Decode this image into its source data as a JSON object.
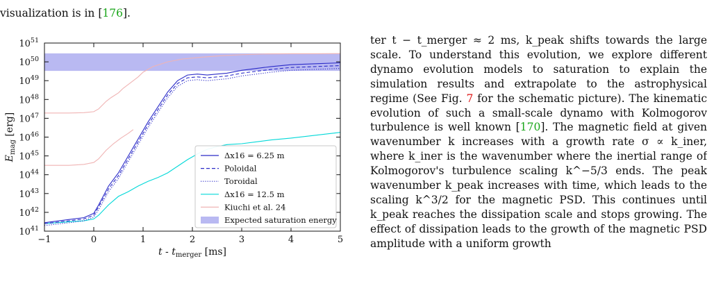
{
  "top_text": {
    "line1": "",
    "line2_prefix": "visualization is in [",
    "line2_ref": "176",
    "line2_suffix": "]."
  },
  "chart_data": {
    "type": "line",
    "title": "",
    "xlabel": "t - t_merger [ms]",
    "ylabel": "E_mag [erg]",
    "xlim": [
      -1,
      5
    ],
    "ylim_log10": [
      41,
      51
    ],
    "yscale": "log",
    "x_ticks": [
      "−1",
      "0",
      "1",
      "2",
      "3",
      "4",
      "5"
    ],
    "y_ticks": [
      "10^41",
      "10^42",
      "10^43",
      "10^44",
      "10^45",
      "10^46",
      "10^47",
      "10^48",
      "10^49",
      "10^50",
      "10^51"
    ],
    "legend_position": "lower-right",
    "saturation_band_log10": [
      49.52,
      50.45
    ],
    "series": [
      {
        "name": "Δx16 = 6.25 m",
        "color": "#2b2bc8",
        "dash": "solid",
        "x": [
          -1,
          -0.5,
          -0.2,
          0,
          0.1,
          0.3,
          0.5,
          0.7,
          0.9,
          1.1,
          1.3,
          1.5,
          1.7,
          1.9,
          2.1,
          2.3,
          2.5,
          2.7,
          3,
          3.3,
          3.6,
          4,
          4.5,
          5
        ],
        "log10_y": [
          41.45,
          41.62,
          41.72,
          41.95,
          42.4,
          43.4,
          44.1,
          45.0,
          45.9,
          46.8,
          47.6,
          48.4,
          49.0,
          49.3,
          49.35,
          49.3,
          49.35,
          49.4,
          49.55,
          49.65,
          49.75,
          49.85,
          49.9,
          49.95
        ]
      },
      {
        "name": "Poloidal",
        "color": "#2b2bc8",
        "dash": "dashed",
        "x": [
          -1,
          -0.5,
          -0.2,
          0,
          0.1,
          0.3,
          0.5,
          0.7,
          0.9,
          1.1,
          1.3,
          1.5,
          1.7,
          1.9,
          2.1,
          2.3,
          2.5,
          2.7,
          3,
          3.3,
          3.6,
          4,
          4.5,
          5
        ],
        "log10_y": [
          41.4,
          41.55,
          41.65,
          41.85,
          42.3,
          43.25,
          43.95,
          44.85,
          45.75,
          46.65,
          47.45,
          48.25,
          48.85,
          49.15,
          49.2,
          49.15,
          49.2,
          49.25,
          49.4,
          49.5,
          49.6,
          49.7,
          49.75,
          49.8
        ]
      },
      {
        "name": "Toroidal",
        "color": "#2b2bc8",
        "dash": "dotted",
        "x": [
          -1,
          -0.5,
          -0.2,
          0,
          0.1,
          0.3,
          0.5,
          0.7,
          0.9,
          1.1,
          1.3,
          1.5,
          1.7,
          1.9,
          2.1,
          2.3,
          2.5,
          2.7,
          3,
          3.3,
          3.6,
          4,
          4.5,
          5
        ],
        "log10_y": [
          41.3,
          41.45,
          41.55,
          41.75,
          42.15,
          43.1,
          43.8,
          44.7,
          45.6,
          46.5,
          47.3,
          48.1,
          48.7,
          49.0,
          49.05,
          49.0,
          49.05,
          49.1,
          49.25,
          49.35,
          49.45,
          49.55,
          49.6,
          49.65
        ]
      },
      {
        "name": "Δx16 = 12.5 m",
        "color": "#00d8d8",
        "dash": "solid",
        "x": [
          -1,
          -0.5,
          -0.2,
          0,
          0.1,
          0.3,
          0.5,
          0.7,
          0.9,
          1.1,
          1.3,
          1.5,
          1.7,
          1.9,
          2.1,
          2.3,
          2.5,
          2.7,
          3,
          3.3,
          3.6,
          4,
          4.5,
          5
        ],
        "log10_y": [
          41.4,
          41.5,
          41.55,
          41.65,
          41.85,
          42.4,
          42.85,
          43.1,
          43.4,
          43.65,
          43.85,
          44.1,
          44.45,
          44.8,
          45.1,
          45.35,
          45.5,
          45.6,
          45.65,
          45.75,
          45.85,
          45.95,
          46.1,
          46.25
        ]
      },
      {
        "name": "Kiuchi et al. 24",
        "color": "#f0b4b4",
        "dash": "solid",
        "x": [
          -1,
          -0.5,
          -0.2,
          0,
          0.1,
          0.25,
          0.35,
          0.5,
          0.6,
          0.75,
          0.9,
          1.0,
          1.2,
          1.5,
          1.8,
          2.2,
          2.6,
          3,
          3.5,
          4,
          4.5,
          5
        ],
        "log10_y": [
          47.28,
          47.28,
          47.3,
          47.35,
          47.5,
          47.9,
          48.1,
          48.35,
          48.6,
          48.9,
          49.2,
          49.45,
          49.75,
          50.0,
          50.15,
          50.25,
          50.33,
          50.38,
          50.42,
          50.43,
          50.43,
          50.44
        ]
      },
      {
        "name": "",
        "color": "#f0b4b4",
        "dash": "solid",
        "x": [
          -1,
          -0.5,
          -0.2,
          0,
          0.1,
          0.25,
          0.4,
          0.55,
          0.7,
          0.8
        ],
        "log10_y": [
          44.5,
          44.5,
          44.55,
          44.65,
          44.85,
          45.3,
          45.65,
          45.95,
          46.2,
          46.4
        ]
      }
    ],
    "band_name": "Expected saturation energy"
  },
  "legend_entries": [
    {
      "label": "Δx16 = 6.25 m",
      "color": "#2b2bc8",
      "dash": "solid"
    },
    {
      "label": "Poloidal",
      "color": "#2b2bc8",
      "dash": "dashed"
    },
    {
      "label": "Toroidal",
      "color": "#2b2bc8",
      "dash": "dotted"
    },
    {
      "label": "Δx16 = 12.5 m",
      "color": "#00d8d8",
      "dash": "solid"
    },
    {
      "label": "Kiuchi et al. 24",
      "color": "#f0b4b4",
      "dash": "solid"
    },
    {
      "label": "Expected saturation energy",
      "color": "#b9b9f2",
      "dash": "band"
    }
  ],
  "colors": {
    "band": "#b9b9f2",
    "link_red": "#dd1111",
    "cite_green": "#1aa61a"
  },
  "body_text": {
    "p1": "ter t − t_merger ≈ 2 ms, k_peak shifts towards the large scale. To understand this evolution, we explore different dynamo evolution models to saturation to explain the simulation results and extrapolate to the astrophysical regime (See Fig. ",
    "fig_ref": "7",
    "p2": " for the schematic picture). The kinematic evolution of such a small-scale dynamo with Kolmogorov turbulence is well known [",
    "ref170": "170",
    "p3": "]. The magnetic field at given wavenumber k increases with a growth rate σ ∝ k_iner, where k_iner is the wavenumber where the inertial range of Kolmogorov's turbulence scaling k^−5/3 ends. The peak wavenumber k_peak increases with time, which leads to the scaling k^3/2 for the magnetic PSD. This continues until k_peak reaches the dissipation scale and stops growing. The effect of dissipation leads to the growth of the magnetic PSD amplitude with a uniform growth"
  }
}
